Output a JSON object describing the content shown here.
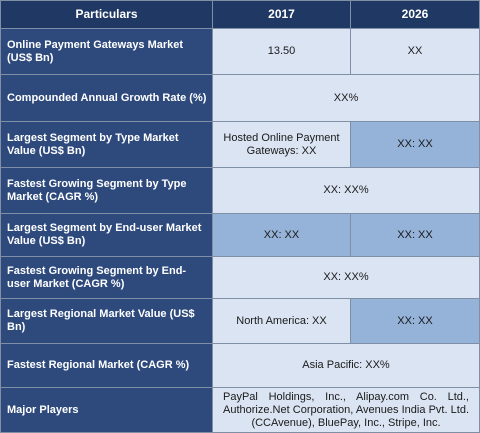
{
  "table": {
    "headers": [
      "Particulars",
      "2017",
      "2026"
    ],
    "rows": [
      {
        "label": "Online Payment Gateways Market (US$ Bn)",
        "v2017": "13.50",
        "v2026": "XX"
      },
      {
        "label": "Compounded Annual Growth Rate (%)",
        "span": "XX%"
      },
      {
        "label": "Largest Segment by Type Market Value (US$ Bn)",
        "v2017": "Hosted Online Payment Gateways: XX",
        "v2026": "XX: XX"
      },
      {
        "label": "Fastest Growing Segment by Type Market (CAGR %)",
        "span": "XX: XX%"
      },
      {
        "label": "Largest Segment by End-user Market Value (US$ Bn)",
        "v2017": "XX: XX",
        "v2026": "XX: XX"
      },
      {
        "label": "Fastest Growing Segment by End-user Market (CAGR %)",
        "span": "XX: XX%"
      },
      {
        "label": "Largest Regional Market Value (US$ Bn)",
        "v2017": "North America: XX",
        "v2026": "XX: XX"
      },
      {
        "label": "Fastest Regional Market (CAGR %)",
        "span": "Asia Pacific: XX%"
      },
      {
        "label": "Major Players",
        "span": "PayPal Holdings, Inc., Alipay.com Co. Ltd., Authorize.Net Corporation, Avenues India Pvt. Ltd. (CCAvenue), BluePay, Inc., Stripe, Inc."
      }
    ]
  }
}
